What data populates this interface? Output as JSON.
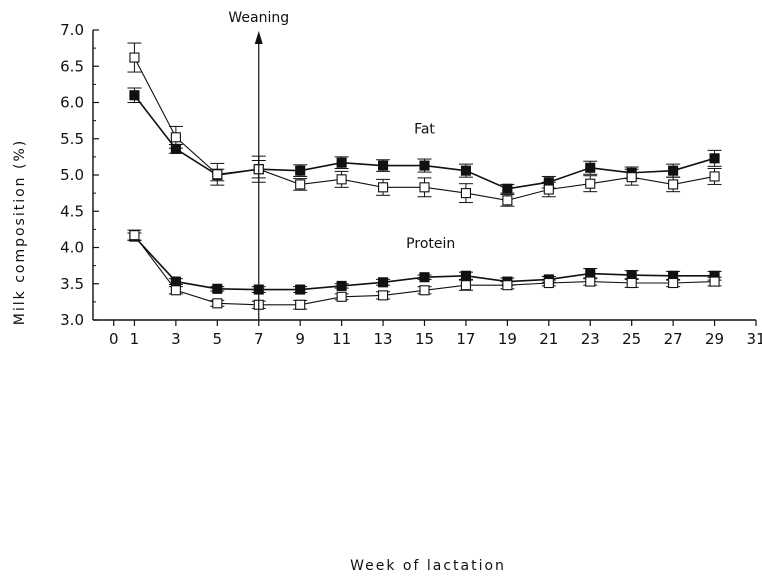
{
  "chart_data": {
    "type": "line",
    "xlabel": "Week of lactation",
    "ylabel": "Milk composition (%)",
    "xlim": [
      -1,
      31
    ],
    "ylim": [
      3.0,
      7.0
    ],
    "x_ticks": [
      0,
      1,
      3,
      5,
      7,
      9,
      11,
      13,
      15,
      17,
      19,
      21,
      23,
      25,
      27,
      29,
      31
    ],
    "y_ticks": [
      "3.0",
      "3.5",
      "4.0",
      "4.5",
      "5.0",
      "5.5",
      "6.0",
      "6.5",
      "7.0"
    ],
    "grid": false,
    "annotations": [
      {
        "text": "Weaning",
        "x": 7,
        "kind": "vertical-arrow"
      },
      {
        "text": "Fat",
        "x": 15,
        "y": 5.57
      },
      {
        "text": "Protein",
        "x": 15.3,
        "y": 3.99
      }
    ],
    "series": [
      {
        "group": "Fat",
        "marker": "filled-square",
        "x": [
          1,
          3,
          5,
          7,
          9,
          11,
          13,
          15,
          17,
          19,
          21,
          23,
          25,
          27,
          29
        ],
        "y": [
          6.1,
          5.36,
          5.0,
          5.08,
          5.06,
          5.17,
          5.13,
          5.13,
          5.06,
          4.81,
          4.9,
          5.1,
          5.03,
          5.06,
          5.23
        ],
        "err": [
          0.1,
          0.06,
          0.08,
          0.12,
          0.08,
          0.08,
          0.08,
          0.09,
          0.09,
          0.06,
          0.08,
          0.09,
          0.08,
          0.09,
          0.11
        ]
      },
      {
        "group": "Fat",
        "marker": "open-square",
        "x": [
          1,
          3,
          5,
          7,
          9,
          11,
          13,
          15,
          17,
          19,
          21,
          23,
          25,
          27,
          29
        ],
        "y": [
          6.62,
          5.52,
          5.01,
          5.08,
          4.87,
          4.94,
          4.83,
          4.83,
          4.75,
          4.65,
          4.8,
          4.88,
          4.97,
          4.87,
          4.98
        ],
        "err": [
          0.2,
          0.15,
          0.15,
          0.18,
          0.08,
          0.11,
          0.11,
          0.13,
          0.13,
          0.08,
          0.1,
          0.11,
          0.11,
          0.1,
          0.11
        ]
      },
      {
        "group": "Protein",
        "marker": "filled-square",
        "x": [
          1,
          3,
          5,
          7,
          9,
          11,
          13,
          15,
          17,
          19,
          21,
          23,
          25,
          27,
          29
        ],
        "y": [
          4.15,
          3.53,
          3.43,
          3.42,
          3.42,
          3.47,
          3.52,
          3.59,
          3.61,
          3.53,
          3.56,
          3.64,
          3.62,
          3.61,
          3.61
        ],
        "err": [
          0.05,
          0.04,
          0.03,
          0.04,
          0.04,
          0.03,
          0.04,
          0.03,
          0.05,
          0.05,
          0.04,
          0.07,
          0.06,
          0.06,
          0.06
        ]
      },
      {
        "group": "Protein",
        "marker": "open-square",
        "x": [
          1,
          3,
          5,
          7,
          9,
          11,
          13,
          15,
          17,
          19,
          21,
          23,
          25,
          27,
          29
        ],
        "y": [
          4.17,
          3.41,
          3.23,
          3.21,
          3.21,
          3.32,
          3.34,
          3.41,
          3.48,
          3.48,
          3.51,
          3.53,
          3.51,
          3.51,
          3.53
        ],
        "err": [
          0.07,
          0.05,
          0.04,
          0.05,
          0.06,
          0.04,
          0.05,
          0.05,
          0.07,
          0.05,
          0.04,
          0.05,
          0.06,
          0.05,
          0.06
        ]
      }
    ],
    "colors": {
      "ink": "#111111",
      "background": "#ffffff"
    }
  }
}
